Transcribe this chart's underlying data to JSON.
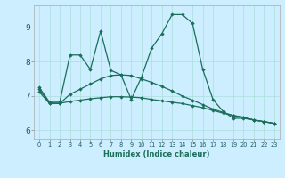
{
  "xlabel": "Humidex (Indice chaleur)",
  "background_color": "#cceeff",
  "grid_color": "#aadddd",
  "line_color": "#1a6e5a",
  "tick_color": "#1a5a5a",
  "xlim": [
    -0.5,
    23.5
  ],
  "ylim": [
    5.75,
    9.65
  ],
  "yticks": [
    6,
    7,
    8,
    9
  ],
  "xticks": [
    0,
    1,
    2,
    3,
    4,
    5,
    6,
    7,
    8,
    9,
    10,
    11,
    12,
    13,
    14,
    15,
    16,
    17,
    18,
    19,
    20,
    21,
    22,
    23
  ],
  "line1_x": [
    0,
    1,
    2,
    3,
    4,
    5,
    6,
    7,
    8,
    9,
    10,
    11,
    12,
    13,
    14,
    15,
    16,
    17,
    18,
    19,
    20,
    21,
    22,
    23
  ],
  "line1_y": [
    7.25,
    6.82,
    6.82,
    8.2,
    8.2,
    7.78,
    8.9,
    7.75,
    7.62,
    6.9,
    7.55,
    8.4,
    8.82,
    9.38,
    9.38,
    9.12,
    7.78,
    6.9,
    6.55,
    6.35,
    6.35,
    6.3,
    6.25,
    6.2
  ],
  "line2_x": [
    0,
    1,
    2,
    3,
    4,
    5,
    6,
    7,
    8,
    9,
    10,
    11,
    12,
    13,
    14,
    15,
    16,
    17,
    18,
    19,
    20,
    21,
    22,
    23
  ],
  "line2_y": [
    7.12,
    6.78,
    6.78,
    7.05,
    7.2,
    7.35,
    7.5,
    7.6,
    7.62,
    7.6,
    7.5,
    7.4,
    7.28,
    7.15,
    7.0,
    6.88,
    6.75,
    6.62,
    6.52,
    6.43,
    6.38,
    6.3,
    6.25,
    6.2
  ],
  "line3_x": [
    0,
    1,
    2,
    3,
    4,
    5,
    6,
    7,
    8,
    9,
    10,
    11,
    12,
    13,
    14,
    15,
    16,
    17,
    18,
    19,
    20,
    21,
    22,
    23
  ],
  "line3_y": [
    7.2,
    6.79,
    6.79,
    6.84,
    6.88,
    6.92,
    6.95,
    6.98,
    6.98,
    6.97,
    6.95,
    6.9,
    6.86,
    6.82,
    6.78,
    6.72,
    6.66,
    6.58,
    6.5,
    6.43,
    6.38,
    6.3,
    6.25,
    6.2
  ]
}
